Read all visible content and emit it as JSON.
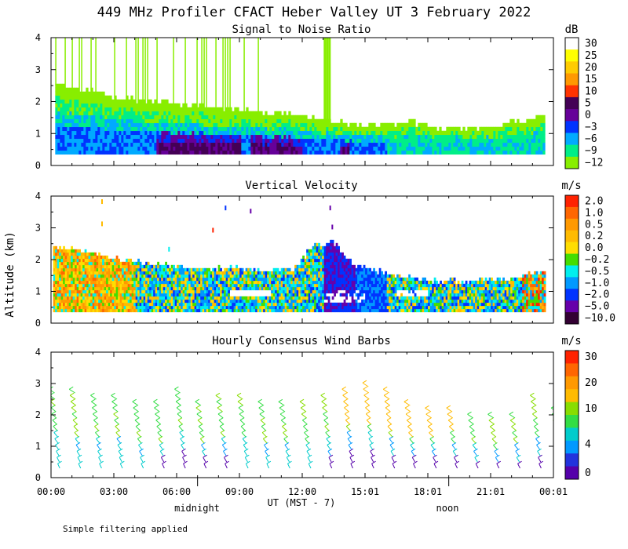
{
  "chart_data": {
    "title": "449 MHz Profiler CFACT Heber Valley UT  3 February 2022",
    "footnote": "Simple filtering applied",
    "ylabel": "Altitude (km)",
    "xlabel": "UT  (MST - 7)",
    "x_ticks": [
      "00:00",
      "03:00",
      "06:00",
      "09:00",
      "12:00",
      "15:01",
      "18:01",
      "21:01",
      "00:01"
    ],
    "x_markers": [
      {
        "label": "midnight",
        "hour": 7
      },
      {
        "label": "noon",
        "hour": 19
      }
    ],
    "ylim": [
      0,
      4
    ],
    "y_ticks": [
      "0",
      "1",
      "2",
      "3",
      "4"
    ],
    "x_hours": 24,
    "panels": [
      {
        "type": "heatmap",
        "title": "Signal to Noise Ratio",
        "units": "dB",
        "colorbar_labels": [
          "30",
          "25",
          "20",
          "15",
          "10",
          "5",
          "0",
          "−3",
          "−6",
          "−9",
          "−12"
        ],
        "colorbar_colors": [
          "#ffffff",
          "#ffff00",
          "#ffcc00",
          "#ff9900",
          "#ff3300",
          "#440055",
          "#660099",
          "#0033ff",
          "#00aaff",
          "#00ee88",
          "#88ee00"
        ],
        "data_top_km": [
          2.5,
          2.4,
          2.3,
          2.1,
          2.0,
          1.95,
          1.9,
          1.85,
          1.8,
          1.7,
          1.65,
          1.6,
          1.55,
          1.4,
          1.3,
          1.25,
          1.2,
          1.2,
          1.3,
          1.1,
          1.15,
          1.1,
          1.2,
          1.3,
          1.4,
          1.6
        ],
        "data_bottom_km": 0.35
      },
      {
        "type": "heatmap",
        "title": "Vertical Velocity",
        "units": "m/s",
        "colorbar_labels": [
          "2.0",
          "1.0",
          "0.5",
          "0.2",
          "0.0",
          "−0.2",
          "−0.5",
          "−1.0",
          "−2.0",
          "−5.0",
          "−10.0"
        ],
        "colorbar_colors": [
          "#ff2200",
          "#ff6600",
          "#ff9900",
          "#ffbb00",
          "#ffdd00",
          "#44dd00",
          "#00eeee",
          "#0099ff",
          "#0033ff",
          "#6600aa",
          "#330033"
        ],
        "data_top_km": [
          2.3,
          2.3,
          2.2,
          2.0,
          1.9,
          1.8,
          1.75,
          1.7,
          1.7,
          1.7,
          1.65,
          1.6,
          1.6,
          2.4,
          2.5,
          1.8,
          1.6,
          1.5,
          1.4,
          1.3,
          1.3,
          1.3,
          1.3,
          1.4,
          1.5,
          1.6
        ],
        "data_bottom_km": 0.35
      },
      {
        "type": "wind_barbs",
        "title": "Hourly Consensus Wind Barbs",
        "units": "m/s",
        "colorbar_labels": [
          "30",
          "20",
          "10",
          "4",
          "0"
        ],
        "colorbar_colors": [
          "#ff2200",
          "#ff6600",
          "#ff9900",
          "#ffbb00",
          "#88dd00",
          "#33dd44",
          "#00cccc",
          "#0099ff",
          "#2233dd",
          "#5500aa"
        ],
        "column_tops_km": [
          2.9,
          2.7,
          2.6,
          2.5,
          2.4,
          2.4,
          2.9,
          2.4,
          2.5,
          2.6,
          2.4,
          2.3,
          2.4,
          2.6,
          2.9,
          3.0,
          2.7,
          2.3,
          2.1,
          2.2,
          2.0,
          1.9,
          2.0,
          2.6,
          2.2
        ]
      }
    ]
  }
}
